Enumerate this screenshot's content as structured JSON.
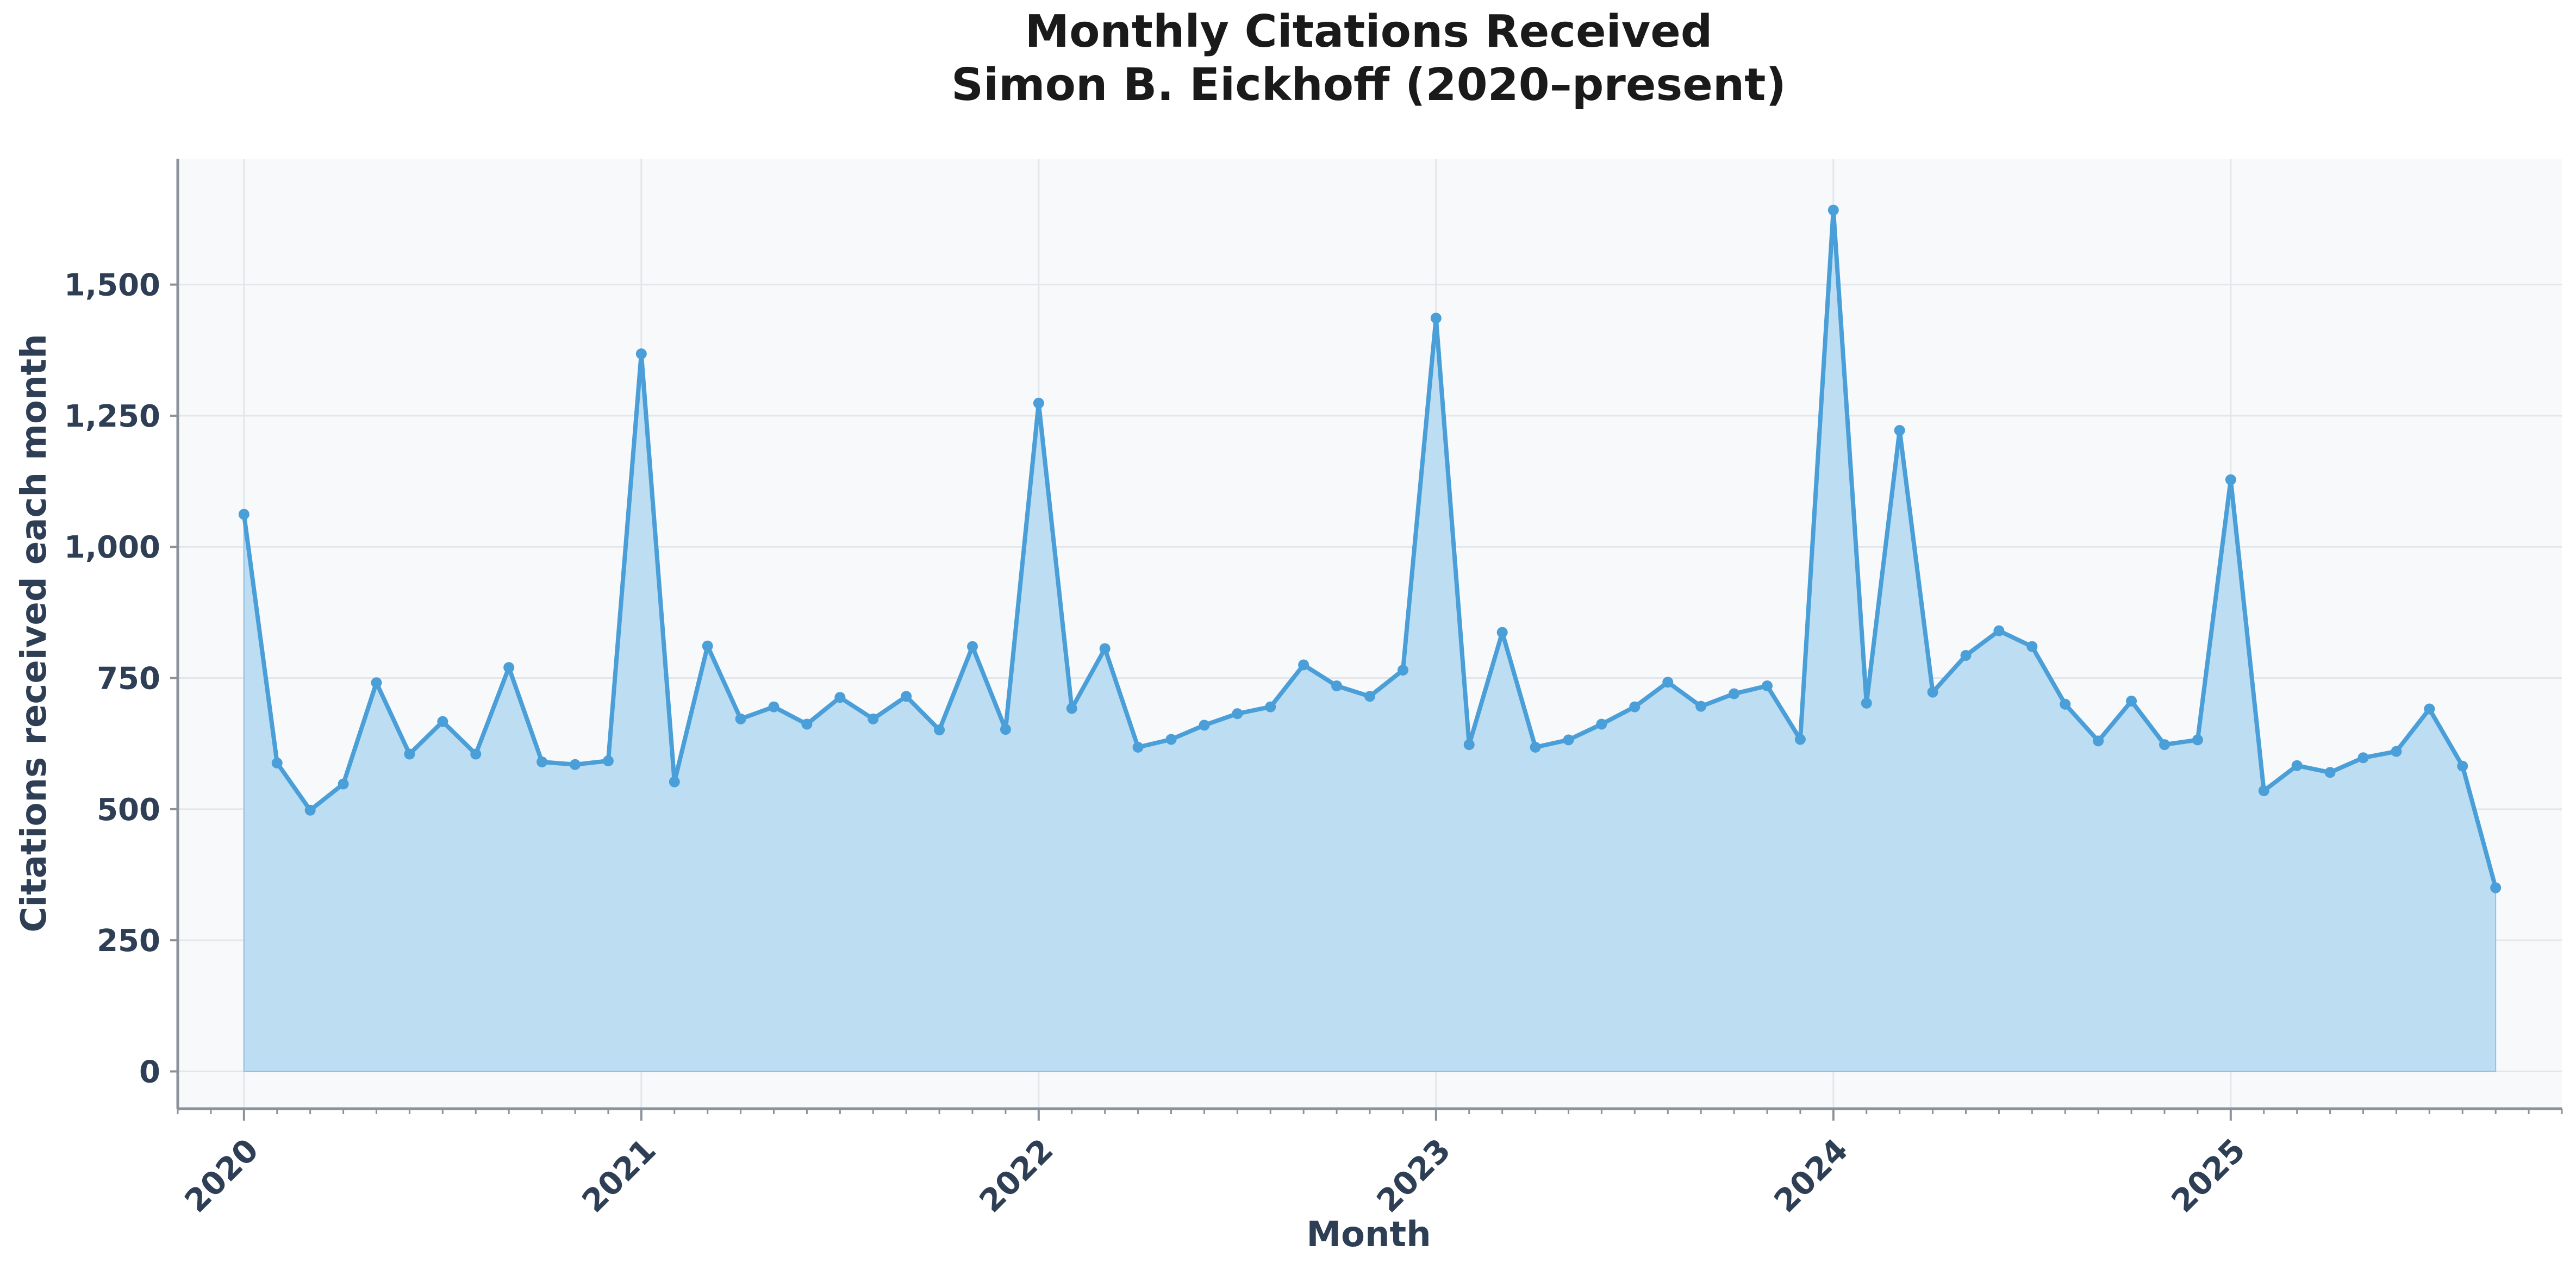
{
  "chart_data": {
    "type": "area",
    "title": "Monthly Citations Received",
    "subtitle": "Simon B. Eickhoff (2020–present)",
    "xlabel": "Month",
    "ylabel": "Citations received each month",
    "ylim": [
      -70,
      1740
    ],
    "xlim": [
      "2019-11",
      "2025-11"
    ],
    "yticks": [
      0,
      250,
      500,
      750,
      1000,
      1250,
      1500
    ],
    "ytick_labels": [
      "0",
      "250",
      "500",
      "750",
      "1,000",
      "1,250",
      "1,500"
    ],
    "xticks": [
      "2020-01",
      "2021-01",
      "2022-01",
      "2023-01",
      "2024-01",
      "2025-01"
    ],
    "xtick_labels": [
      "2020",
      "2021",
      "2022",
      "2023",
      "2024",
      "2025"
    ],
    "grid": true,
    "line_color": "#4a9fd8",
    "fill_color": "#bdddf2",
    "background_color": "#f8f9fb",
    "x": [
      "2020-01",
      "2020-02",
      "2020-03",
      "2020-04",
      "2020-05",
      "2020-06",
      "2020-07",
      "2020-08",
      "2020-09",
      "2020-10",
      "2020-11",
      "2020-12",
      "2021-01",
      "2021-02",
      "2021-03",
      "2021-04",
      "2021-05",
      "2021-06",
      "2021-07",
      "2021-08",
      "2021-09",
      "2021-10",
      "2021-11",
      "2021-12",
      "2022-01",
      "2022-02",
      "2022-03",
      "2022-04",
      "2022-05",
      "2022-06",
      "2022-07",
      "2022-08",
      "2022-09",
      "2022-10",
      "2022-11",
      "2022-12",
      "2023-01",
      "2023-02",
      "2023-03",
      "2023-04",
      "2023-05",
      "2023-06",
      "2023-07",
      "2023-08",
      "2023-09",
      "2023-10",
      "2023-11",
      "2023-12",
      "2024-01",
      "2024-02",
      "2024-03",
      "2024-04",
      "2024-05",
      "2024-06",
      "2024-07",
      "2024-08",
      "2024-09",
      "2024-10",
      "2024-11",
      "2024-12",
      "2025-01",
      "2025-02",
      "2025-03",
      "2025-04",
      "2025-05",
      "2025-06",
      "2025-07",
      "2025-08",
      "2025-09"
    ],
    "values": [
      1062,
      588,
      498,
      548,
      741,
      605,
      667,
      605,
      770,
      590,
      585,
      592,
      1368,
      552,
      811,
      672,
      695,
      662,
      713,
      672,
      715,
      651,
      810,
      652,
      1274,
      692,
      806,
      618,
      633,
      660,
      682,
      695,
      775,
      735,
      715,
      765,
      1436,
      623,
      837,
      618,
      632,
      662,
      695,
      742,
      696,
      720,
      735,
      633,
      1642,
      702,
      1222,
      723,
      793,
      840,
      810,
      700,
      630,
      706,
      623,
      632,
      1128,
      535,
      583,
      570,
      598,
      610,
      691,
      582,
      350
    ]
  }
}
